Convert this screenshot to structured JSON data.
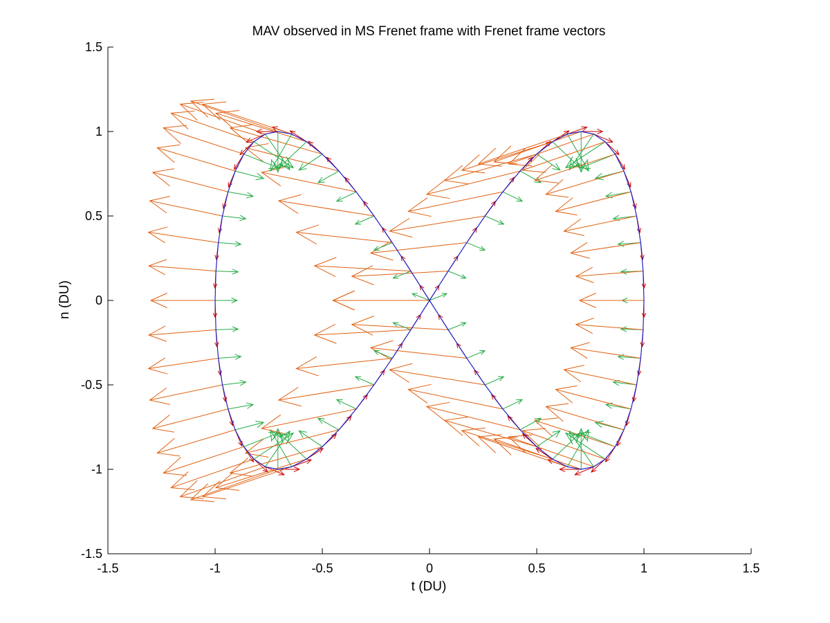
{
  "chart_data": {
    "type": "quiver",
    "title": "MAV observed in MS Frenet frame with Frenet frame vectors",
    "xlabel": "t (DU)",
    "ylabel": "n (DU)",
    "xlim": [
      -1.5,
      1.5
    ],
    "ylim": [
      -1.5,
      1.5
    ],
    "xticks": [
      -1.5,
      -1,
      -0.5,
      0,
      0.5,
      1,
      1.5
    ],
    "xtick_labels": [
      "-1.5",
      "-1",
      "-0.5",
      "0",
      "0.5",
      "1",
      "1.5"
    ],
    "yticks": [
      -1.5,
      -1,
      -0.5,
      0,
      0.5,
      1,
      1.5
    ],
    "ytick_labels": [
      "-1.5",
      "-1",
      "-0.5",
      "0",
      "0.5",
      "1",
      "1.5"
    ],
    "grid": false,
    "legend": "none",
    "curve": {
      "description": "figure-eight trajectory",
      "x_equation": "sin(theta)*cos(theta)*2/sqrt(2)... approximated",
      "amplitude_t": 1.0,
      "amplitude_n": 1.0,
      "point_count": 72
    },
    "series": [
      {
        "role": "trajectory",
        "color": "#2020c0"
      },
      {
        "role": "tangent vectors",
        "color": "#cc0000",
        "scale": 0.1
      },
      {
        "role": "normal vectors",
        "color": "#22aa44",
        "scale": 0.15
      },
      {
        "role": "acceleration vectors",
        "color": "#e06010",
        "scale": 0.45
      }
    ]
  }
}
